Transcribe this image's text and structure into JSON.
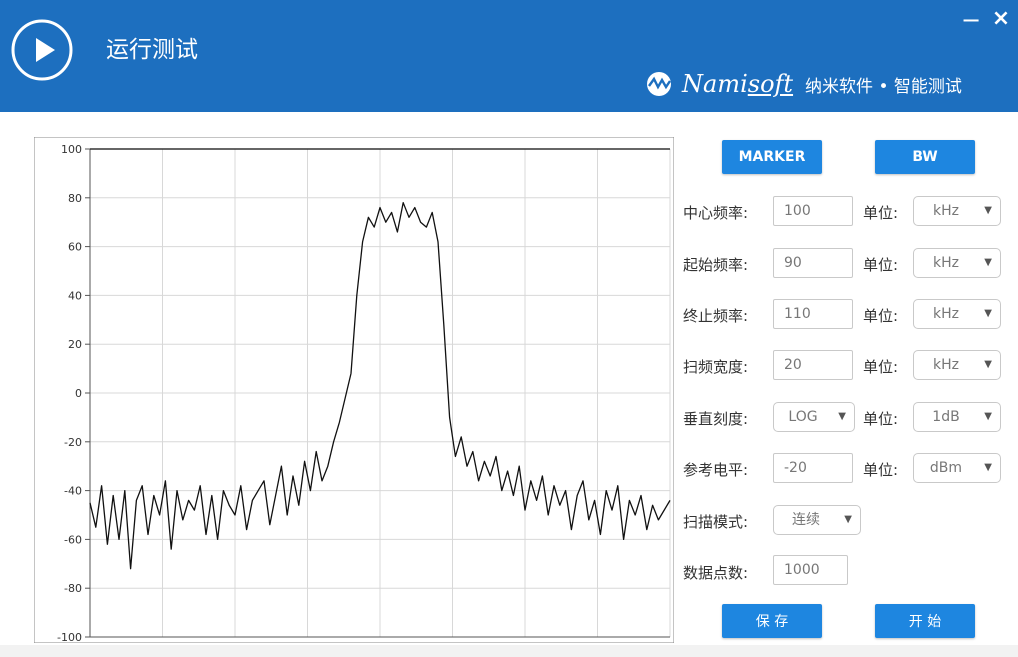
{
  "header": {
    "title": "运行测试",
    "brand_name_1": "Nami",
    "brand_name_2": "soft",
    "brand_tagline": "纳米软件 • 智能测试",
    "minimize": "−",
    "close": "×",
    "colors": {
      "bar": "#1d6fbf",
      "button": "#1e86e0"
    },
    "icons": [
      "play-icon",
      "namisoft-logo-icon",
      "minimize-icon",
      "close-icon"
    ]
  },
  "buttons": {
    "marker": "MARKER",
    "bw": "BW",
    "save": "保 存",
    "start": "开 始"
  },
  "params": [
    {
      "label": "中心频率:",
      "value": "100",
      "unit_label": "单位:",
      "unit": "kHz"
    },
    {
      "label": "起始频率:",
      "value": "90",
      "unit_label": "单位:",
      "unit": "kHz"
    },
    {
      "label": "终止频率:",
      "value": "110",
      "unit_label": "单位:",
      "unit": "kHz"
    },
    {
      "label": "扫频宽度:",
      "value": "20",
      "unit_label": "单位:",
      "unit": "kHz"
    },
    {
      "label": "垂直刻度:",
      "value": "LOG",
      "unit_label": "单位:",
      "unit": "1dB"
    },
    {
      "label": "参考电平:",
      "value": "-20",
      "unit_label": "单位:",
      "unit": "dBm"
    }
  ],
  "scan_mode": {
    "label": "扫描模式:",
    "value": "连续"
  },
  "data_points": {
    "label": "数据点数:",
    "value": "1000"
  },
  "chart_data": {
    "type": "line",
    "title": "",
    "xlabel": "",
    "ylabel": "",
    "ylim": [
      -100,
      100
    ],
    "yticks": [
      100,
      80,
      60,
      40,
      20,
      0,
      -20,
      -40,
      -60,
      -80,
      -100
    ],
    "grid": true,
    "series": [
      {
        "x": [
          0,
          1,
          2,
          3,
          4,
          5,
          6,
          7,
          8,
          9,
          10,
          11,
          12,
          13,
          14,
          15,
          16,
          17,
          18,
          19,
          20,
          21,
          22,
          23,
          24,
          25,
          26,
          27,
          28,
          29,
          30,
          31,
          32,
          33,
          34,
          35,
          36,
          37,
          38,
          39,
          40,
          41,
          42,
          43,
          44,
          45,
          46,
          47,
          48,
          49,
          50,
          51,
          52,
          53,
          54,
          55,
          56,
          57,
          58,
          59,
          60,
          61,
          62,
          63,
          64,
          65,
          66,
          67,
          68,
          69,
          70,
          71,
          72,
          73,
          74,
          75,
          76,
          77,
          78,
          79,
          80,
          81,
          82,
          83,
          84,
          85,
          86,
          87,
          88,
          89,
          90,
          91,
          92,
          93,
          94,
          95,
          96,
          97,
          98,
          99,
          100
        ],
        "values": [
          -45,
          -55,
          -38,
          -62,
          -42,
          -60,
          -40,
          -72,
          -44,
          -38,
          -58,
          -42,
          -50,
          -36,
          -64,
          -40,
          -52,
          -44,
          -48,
          -38,
          -58,
          -42,
          -60,
          -40,
          -46,
          -50,
          -38,
          -56,
          -44,
          -40,
          -36,
          -54,
          -42,
          -30,
          -50,
          -34,
          -46,
          -28,
          -40,
          -24,
          -36,
          -30,
          -20,
          -12,
          -2,
          8,
          40,
          62,
          72,
          68,
          76,
          70,
          74,
          66,
          78,
          72,
          76,
          70,
          68,
          74,
          62,
          28,
          -10,
          -26,
          -18,
          -30,
          -24,
          -36,
          -28,
          -34,
          -26,
          -40,
          -32,
          -42,
          -30,
          -48,
          -36,
          -44,
          -34,
          -50,
          -38,
          -46,
          -40,
          -56,
          -42,
          -36,
          -52,
          -44,
          -58,
          -40,
          -48,
          -38,
          -60,
          -44,
          -50,
          -42,
          -56,
          -46,
          -52,
          -48,
          -44
        ]
      }
    ]
  }
}
